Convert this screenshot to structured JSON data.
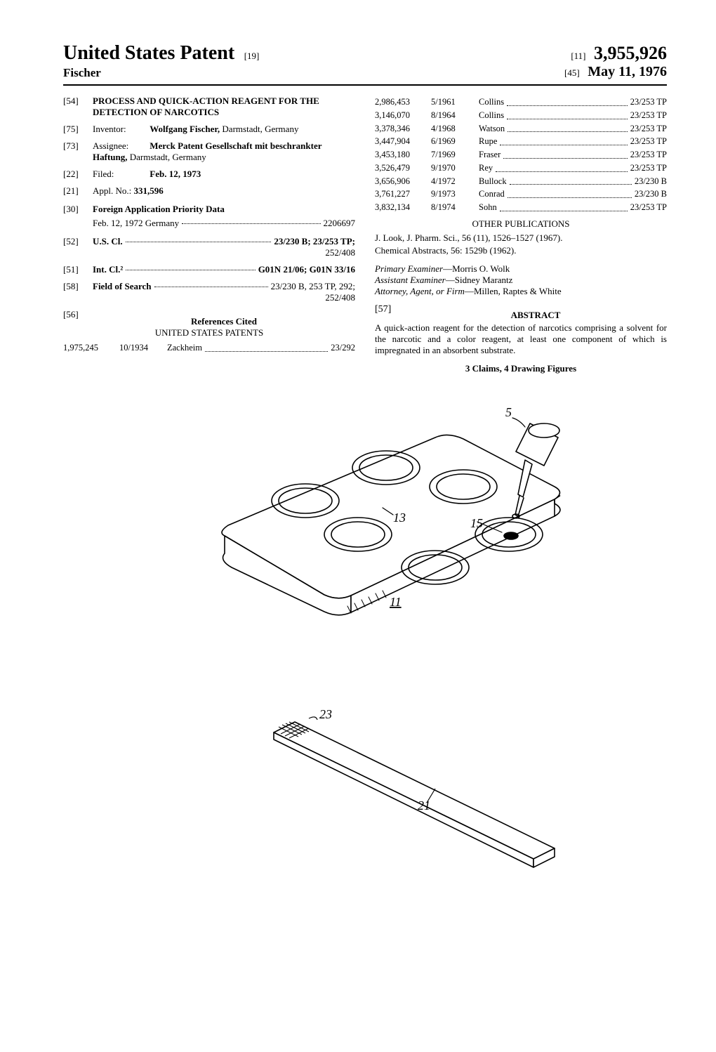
{
  "header": {
    "main_title": "United States Patent",
    "top_bracket": "[19]",
    "inventor_surname": "Fischer",
    "num_bracket": "[11]",
    "patent_number": "3,955,926",
    "date_bracket": "[45]",
    "patent_date": "May 11, 1976"
  },
  "left": {
    "s54": {
      "num": "[54]",
      "title": "PROCESS AND QUICK-ACTION REAGENT FOR THE DETECTION OF NARCOTICS"
    },
    "s75": {
      "num": "[75]",
      "label": "Inventor:",
      "value": "Wolfgang Fischer,",
      "rest": "Darmstadt, Germany"
    },
    "s73": {
      "num": "[73]",
      "label": "Assignee:",
      "value": "Merck Patent Gesellschaft mit beschrankter Haftung,",
      "rest": "Darmstadt, Germany"
    },
    "s22": {
      "num": "[22]",
      "label": "Filed:",
      "value": "Feb. 12, 1973"
    },
    "s21": {
      "num": "[21]",
      "label": "Appl. No.:",
      "value": "331,596"
    },
    "s30": {
      "num": "[30]",
      "title": "Foreign Application Priority Data",
      "row_lead": "Feb. 12, 1972   Germany",
      "row_tail": "2206697"
    },
    "s52": {
      "num": "[52]",
      "lead": "U.S. Cl.",
      "tail": "23/230 B; 23/253 TP;",
      "tail2": "252/408"
    },
    "s51": {
      "num": "[51]",
      "lead": "Int. Cl.²",
      "tail": "G01N 21/06; G01N 33/16"
    },
    "s58": {
      "num": "[58]",
      "lead": "Field of Search",
      "tail": "23/230 B, 253 TP, 292;",
      "tail2": "252/408"
    },
    "s56": {
      "num": "[56]",
      "title": "References Cited",
      "sub": "UNITED STATES PATENTS"
    },
    "us_patents_left": [
      {
        "no": "1,975,245",
        "date": "10/1934",
        "name": "Zackheim",
        "cls": "23/292"
      }
    ]
  },
  "right": {
    "us_patents": [
      {
        "no": "2,986,453",
        "date": "5/1961",
        "name": "Collins",
        "cls": "23/253 TP"
      },
      {
        "no": "3,146,070",
        "date": "8/1964",
        "name": "Collins",
        "cls": "23/253 TP"
      },
      {
        "no": "3,378,346",
        "date": "4/1968",
        "name": "Watson",
        "cls": "23/253 TP"
      },
      {
        "no": "3,447,904",
        "date": "6/1969",
        "name": "Rupe",
        "cls": "23/253 TP"
      },
      {
        "no": "3,453,180",
        "date": "7/1969",
        "name": "Fraser",
        "cls": "23/253 TP"
      },
      {
        "no": "3,526,479",
        "date": "9/1970",
        "name": "Rey",
        "cls": "23/253 TP"
      },
      {
        "no": "3,656,906",
        "date": "4/1972",
        "name": "Bullock",
        "cls": "23/230 B"
      },
      {
        "no": "3,761,227",
        "date": "9/1973",
        "name": "Conrad",
        "cls": "23/230 B"
      },
      {
        "no": "3,832,134",
        "date": "8/1974",
        "name": "Sohn",
        "cls": "23/253 TP"
      }
    ],
    "other_pubs_title": "OTHER PUBLICATIONS",
    "pubs": [
      "J. Look, J. Pharm. Sci., 56 (11), 1526–1527 (1967).",
      "Chemical Abstracts, 56: 1529b (1962)."
    ],
    "primary_examiner_label": "Primary Examiner",
    "primary_examiner": "Morris O. Wolk",
    "assistant_examiner_label": "Assistant Examiner",
    "assistant_examiner": "Sidney Marantz",
    "attorney_label": "Attorney, Agent, or Firm",
    "attorney": "Millen, Raptes & White",
    "s57": {
      "num": "[57]",
      "title": "ABSTRACT"
    },
    "abstract": "A quick-action reagent for the detection of narcotics comprising a solvent for the narcotic and a color reagent, at least one component of which is impregnated in an absorbent substrate.",
    "claims": "3 Claims, 4 Drawing Figures"
  },
  "figure": {
    "labels": {
      "l5": "5",
      "l13": "13",
      "l15": "15",
      "l11": "11",
      "l23": "23",
      "l21": "21"
    },
    "stroke": "#000000",
    "fill": "#ffffff"
  }
}
